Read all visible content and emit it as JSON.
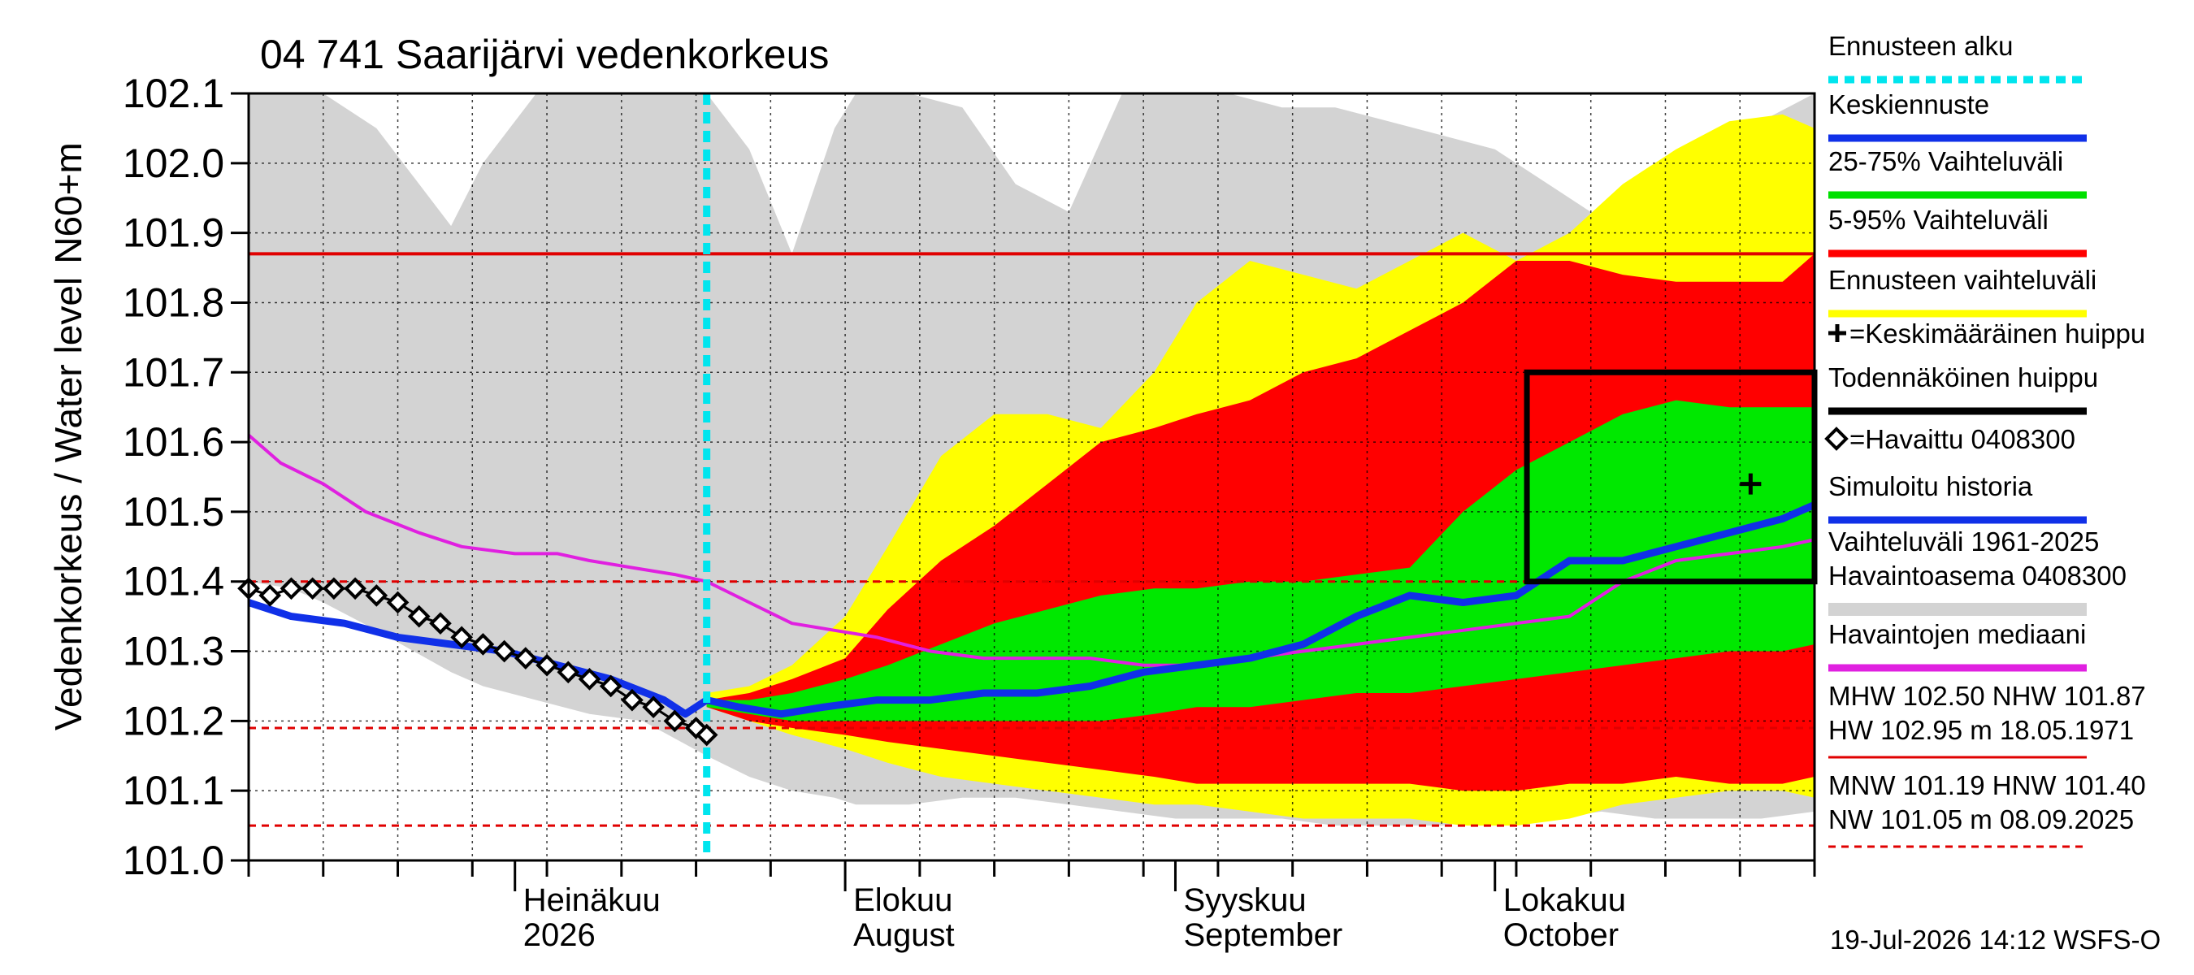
{
  "chart_data": {
    "type": "area",
    "title": "04 741 Saarijärvi vedenkorkeus",
    "ylabel_unit": "N60+m",
    "ylabel": "Vedenkorkeus / Water level",
    "ylim": [
      101.0,
      102.1
    ],
    "yticks": [
      "102.1",
      "102.0",
      "101.9",
      "101.8",
      "101.7",
      "101.6",
      "101.5",
      "101.4",
      "101.3",
      "101.2",
      "101.1",
      "101.0"
    ],
    "x_start": "2026-06-06",
    "x_end": "2026-10-31",
    "month_labels": [
      {
        "fi": "Heinäkuu",
        "en": "2026",
        "date": "2026-07-01"
      },
      {
        "fi": "Elokuu",
        "en": "August",
        "date": "2026-08-01"
      },
      {
        "fi": "Syyskuu",
        "en": "September",
        "date": "2026-09-01"
      },
      {
        "fi": "Lokakuu",
        "en": "October",
        "date": "2026-10-01"
      }
    ],
    "forecast_start": "2026-07-19",
    "reference_lines": [
      {
        "name": "NHW",
        "value": 101.87,
        "style": "solid",
        "color": "#e00000"
      },
      {
        "name": "HNW",
        "value": 101.4,
        "style": "dashed",
        "color": "#e00000"
      },
      {
        "name": "MNW",
        "value": 101.19,
        "style": "dashed",
        "color": "#e00000"
      },
      {
        "name": "NW",
        "value": 101.05,
        "style": "dashed",
        "color": "#e00000"
      }
    ],
    "bands": {
      "hist_range": {
        "dates": [
          "2026-06-06",
          "2026-06-10",
          "2026-06-13",
          "2026-06-18",
          "2026-06-25",
          "2026-06-28",
          "2026-07-03",
          "2026-07-08",
          "2026-07-13",
          "2026-07-19",
          "2026-07-23",
          "2026-07-27",
          "2026-07-31",
          "2026-08-02",
          "2026-08-07",
          "2026-08-12",
          "2026-08-17",
          "2026-08-22",
          "2026-08-27",
          "2026-09-01",
          "2026-09-06",
          "2026-09-11",
          "2026-09-16",
          "2026-09-21",
          "2026-09-26",
          "2026-10-01",
          "2026-10-06",
          "2026-10-11",
          "2026-10-16",
          "2026-10-21",
          "2026-10-26",
          "2026-10-31"
        ],
        "upper": [
          102.1,
          102.1,
          102.1,
          102.05,
          101.91,
          102.0,
          102.1,
          102.1,
          102.1,
          102.1,
          102.02,
          101.87,
          102.05,
          102.1,
          102.1,
          102.08,
          101.97,
          101.93,
          102.1,
          102.1,
          102.1,
          102.08,
          102.08,
          102.06,
          102.04,
          102.02,
          101.97,
          101.92,
          101.98,
          102.02,
          102.06,
          102.1
        ],
        "lower": [
          101.4,
          101.39,
          101.37,
          101.33,
          101.27,
          101.25,
          101.23,
          101.21,
          101.2,
          101.15,
          101.12,
          101.1,
          101.09,
          101.08,
          101.08,
          101.09,
          101.09,
          101.08,
          101.07,
          101.06,
          101.06,
          101.06,
          101.05,
          101.05,
          101.05,
          101.06,
          101.06,
          101.07,
          101.06,
          101.06,
          101.06,
          101.07
        ]
      },
      "forecast_range": {
        "dates": [
          "2026-07-19",
          "2026-07-23",
          "2026-07-27",
          "2026-08-01",
          "2026-08-05",
          "2026-08-10",
          "2026-08-15",
          "2026-08-20",
          "2026-08-25",
          "2026-08-30",
          "2026-09-03",
          "2026-09-08",
          "2026-09-13",
          "2026-09-18",
          "2026-09-23",
          "2026-09-28",
          "2026-10-03",
          "2026-10-08",
          "2026-10-13",
          "2026-10-18",
          "2026-10-23",
          "2026-10-28",
          "2026-10-31"
        ],
        "upper": [
          101.24,
          101.25,
          101.28,
          101.35,
          101.45,
          101.58,
          101.64,
          101.64,
          101.62,
          101.7,
          101.8,
          101.86,
          101.84,
          101.82,
          101.86,
          101.9,
          101.86,
          101.9,
          101.97,
          102.02,
          102.06,
          102.07,
          102.05
        ],
        "lower": [
          101.22,
          101.2,
          101.18,
          101.16,
          101.14,
          101.12,
          101.11,
          101.1,
          101.09,
          101.08,
          101.08,
          101.07,
          101.06,
          101.06,
          101.06,
          101.05,
          101.05,
          101.06,
          101.08,
          101.09,
          101.1,
          101.1,
          101.09
        ]
      },
      "p5_95": {
        "dates": [
          "2026-07-19",
          "2026-07-23",
          "2026-07-27",
          "2026-08-01",
          "2026-08-05",
          "2026-08-10",
          "2026-08-15",
          "2026-08-20",
          "2026-08-25",
          "2026-08-30",
          "2026-09-03",
          "2026-09-08",
          "2026-09-13",
          "2026-09-18",
          "2026-09-23",
          "2026-09-28",
          "2026-10-03",
          "2026-10-08",
          "2026-10-13",
          "2026-10-18",
          "2026-10-23",
          "2026-10-28",
          "2026-10-31"
        ],
        "upper": [
          101.23,
          101.24,
          101.26,
          101.29,
          101.36,
          101.43,
          101.48,
          101.54,
          101.6,
          101.62,
          101.64,
          101.66,
          101.7,
          101.72,
          101.76,
          101.8,
          101.86,
          101.86,
          101.84,
          101.83,
          101.83,
          101.83,
          101.87
        ],
        "lower": [
          101.22,
          101.2,
          101.19,
          101.18,
          101.17,
          101.16,
          101.15,
          101.14,
          101.13,
          101.12,
          101.11,
          101.11,
          101.11,
          101.11,
          101.11,
          101.1,
          101.1,
          101.11,
          101.11,
          101.12,
          101.11,
          101.11,
          101.12
        ]
      },
      "p25_75": {
        "dates": [
          "2026-07-19",
          "2026-07-23",
          "2026-07-27",
          "2026-08-01",
          "2026-08-05",
          "2026-08-10",
          "2026-08-15",
          "2026-08-20",
          "2026-08-25",
          "2026-08-30",
          "2026-09-03",
          "2026-09-08",
          "2026-09-13",
          "2026-09-18",
          "2026-09-23",
          "2026-09-28",
          "2026-10-03",
          "2026-10-08",
          "2026-10-13",
          "2026-10-18",
          "2026-10-23",
          "2026-10-28",
          "2026-10-31"
        ],
        "upper": [
          101.23,
          101.23,
          101.24,
          101.26,
          101.28,
          101.31,
          101.34,
          101.36,
          101.38,
          101.39,
          101.39,
          101.4,
          101.4,
          101.41,
          101.42,
          101.5,
          101.56,
          101.6,
          101.64,
          101.66,
          101.65,
          101.65,
          101.65
        ],
        "lower": [
          101.22,
          101.21,
          101.2,
          101.2,
          101.2,
          101.2,
          101.2,
          101.2,
          101.2,
          101.21,
          101.22,
          101.22,
          101.23,
          101.24,
          101.24,
          101.25,
          101.26,
          101.27,
          101.28,
          101.29,
          101.3,
          101.3,
          101.31
        ]
      }
    },
    "series": [
      {
        "name": "Havaintojen mediaani",
        "color": "#e020e0",
        "dates": [
          "2026-06-06",
          "2026-06-09",
          "2026-06-13",
          "2026-06-17",
          "2026-06-22",
          "2026-06-26",
          "2026-07-01",
          "2026-07-05",
          "2026-07-08",
          "2026-07-12",
          "2026-07-16",
          "2026-07-19",
          "2026-07-23",
          "2026-07-27",
          "2026-07-31",
          "2026-08-04",
          "2026-08-09",
          "2026-08-14",
          "2026-08-19",
          "2026-08-24",
          "2026-08-29",
          "2026-09-03",
          "2026-09-08",
          "2026-09-13",
          "2026-09-18",
          "2026-09-23",
          "2026-09-28",
          "2026-10-03",
          "2026-10-08",
          "2026-10-13",
          "2026-10-18",
          "2026-10-23",
          "2026-10-28",
          "2026-10-31"
        ],
        "values": [
          101.61,
          101.57,
          101.54,
          101.5,
          101.47,
          101.45,
          101.44,
          101.44,
          101.43,
          101.42,
          101.41,
          101.4,
          101.37,
          101.34,
          101.33,
          101.32,
          101.3,
          101.29,
          101.29,
          101.29,
          101.28,
          101.28,
          101.29,
          101.3,
          101.31,
          101.32,
          101.33,
          101.34,
          101.35,
          101.4,
          101.43,
          101.44,
          101.45,
          101.46
        ]
      },
      {
        "name": "Simuloitu historia",
        "color": "#1030e8",
        "dates": [
          "2026-06-06",
          "2026-06-10",
          "2026-06-15",
          "2026-06-20",
          "2026-06-25",
          "2026-06-30",
          "2026-07-05",
          "2026-07-10",
          "2026-07-15",
          "2026-07-17",
          "2026-07-19"
        ],
        "values": [
          101.37,
          101.35,
          101.34,
          101.32,
          101.31,
          101.3,
          101.28,
          101.26,
          101.23,
          101.21,
          101.23
        ]
      },
      {
        "name": "Keskiennuste",
        "color": "#1030e8",
        "dates": [
          "2026-07-19",
          "2026-07-22",
          "2026-07-26",
          "2026-07-30",
          "2026-08-04",
          "2026-08-09",
          "2026-08-14",
          "2026-08-19",
          "2026-08-24",
          "2026-08-29",
          "2026-09-03",
          "2026-09-08",
          "2026-09-13",
          "2026-09-18",
          "2026-09-23",
          "2026-09-28",
          "2026-10-03",
          "2026-10-08",
          "2026-10-13",
          "2026-10-18",
          "2026-10-23",
          "2026-10-28",
          "2026-10-31"
        ],
        "values": [
          101.23,
          101.22,
          101.21,
          101.22,
          101.23,
          101.23,
          101.24,
          101.24,
          101.25,
          101.27,
          101.28,
          101.29,
          101.31,
          101.35,
          101.38,
          101.37,
          101.38,
          101.43,
          101.43,
          101.45,
          101.47,
          101.49,
          101.51
        ]
      }
    ],
    "observed": {
      "name": "Havaittu 0408300",
      "dates": [
        "2026-06-06",
        "2026-06-08",
        "2026-06-10",
        "2026-06-12",
        "2026-06-14",
        "2026-06-16",
        "2026-06-18",
        "2026-06-20",
        "2026-06-22",
        "2026-06-24",
        "2026-06-26",
        "2026-06-28",
        "2026-06-30",
        "2026-07-02",
        "2026-07-04",
        "2026-07-06",
        "2026-07-08",
        "2026-07-10",
        "2026-07-12",
        "2026-07-14",
        "2026-07-16",
        "2026-07-18",
        "2026-07-19"
      ],
      "values": [
        101.39,
        101.38,
        101.39,
        101.39,
        101.39,
        101.39,
        101.38,
        101.37,
        101.35,
        101.34,
        101.32,
        101.31,
        101.3,
        101.29,
        101.28,
        101.27,
        101.26,
        101.25,
        101.23,
        101.22,
        101.2,
        101.19,
        101.18
      ]
    },
    "probable_peak_box": {
      "x_from": "2026-10-04",
      "x_to": "2026-10-31",
      "y_from": 101.4,
      "y_to": 101.7
    },
    "mean_peak": {
      "date": "2026-10-25",
      "value": 101.54
    },
    "legend_position": "right",
    "legend": [
      {
        "label": "Ennusteen alku",
        "color": "#00e5ee",
        "style": "dotted"
      },
      {
        "label": "Keskiennuste",
        "color": "#1030e8",
        "style": "line"
      },
      {
        "label": "25-75% Vaihteluväli",
        "color": "#00e000",
        "style": "line"
      },
      {
        "label": "5-95% Vaihteluväli",
        "color": "#ff0000",
        "style": "line"
      },
      {
        "label": "Ennusteen vaihteluväli",
        "color": "#ffff00",
        "style": "line"
      },
      {
        "label": "=Keskimääräinen huippu",
        "color": "#000000",
        "style": "plus"
      },
      {
        "label": "Todennäköinen huippu",
        "color": "#000000",
        "style": "line"
      },
      {
        "label": "=Havaittu 0408300",
        "color": "#000000",
        "style": "diamond"
      },
      {
        "label": "Simuloitu historia",
        "color": "#1030e8",
        "style": "line"
      },
      {
        "label": "Vaihteluväli 1961-2025",
        "color": "#d3d3d3",
        "style": "text"
      },
      {
        "label": "Havaintoasema 0408300",
        "color": "#d3d3d3",
        "style": "line"
      },
      {
        "label": "Havaintojen mediaani",
        "color": "#e020e0",
        "style": "line"
      }
    ],
    "stats_text": [
      {
        "lines": [
          "MHW 102.50 NHW 101.87",
          "HW 102.95 m 18.05.1971"
        ],
        "color": "#e00000",
        "style": "solid"
      },
      {
        "lines": [
          "MNW 101.19 HNW 101.40",
          "NW 101.05 m 08.09.2025"
        ],
        "color": "#e00000",
        "style": "dashed"
      }
    ],
    "footer": "19-Jul-2026 14:12 WSFS-O"
  }
}
